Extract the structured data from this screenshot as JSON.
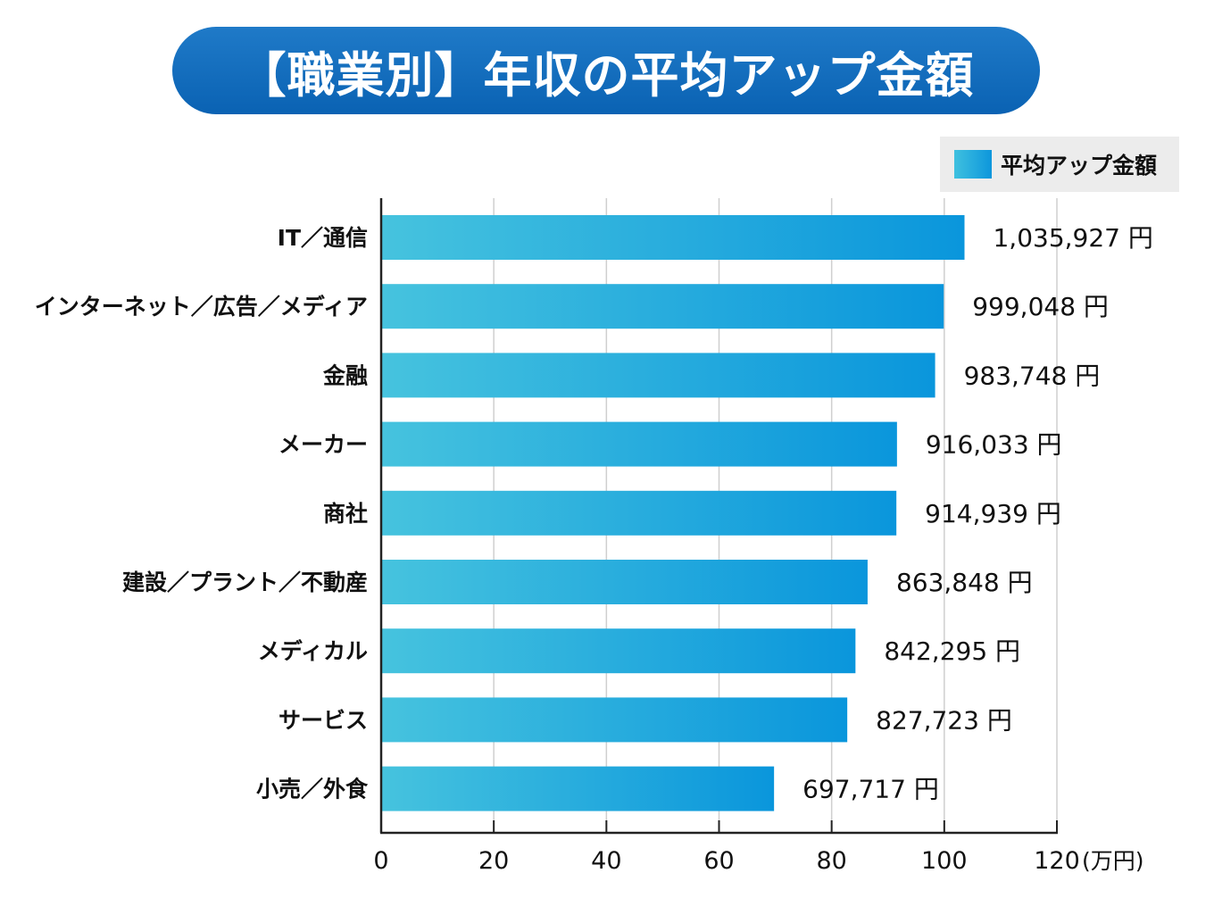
{
  "title": "【職業別】年収の平均アップ金額",
  "legend": {
    "label": "平均アップ金額"
  },
  "colors": {
    "title_bg": "#0a62b3",
    "bar_start": "#46c3de",
    "bar_end": "#0a96dc"
  },
  "chart_data": {
    "type": "bar",
    "orientation": "horizontal",
    "categories": [
      "IT／通信",
      "インターネット／広告／メディア",
      "金融",
      "メーカー",
      "商社",
      "建設／プラント／不動産",
      "メディカル",
      "サービス",
      "小売／外食"
    ],
    "series": [
      {
        "name": "平均アップ金額",
        "values": [
          1035927,
          999048,
          983748,
          916033,
          914939,
          863848,
          842295,
          827723,
          697717
        ]
      }
    ],
    "value_labels": [
      "1,035,927 円",
      "999,048 円",
      "983,748 円",
      "916,033 円",
      "914,939 円",
      "863,848 円",
      "842,295 円",
      "827,723 円",
      "697,717 円"
    ],
    "xlim": [
      0,
      120
    ],
    "x_unit_divisor": 10000,
    "xticks": [
      "0",
      "20",
      "40",
      "60",
      "80",
      "100",
      "120"
    ],
    "x_unit_label": "(万円)",
    "grid": true,
    "legend_position": "top-right"
  }
}
